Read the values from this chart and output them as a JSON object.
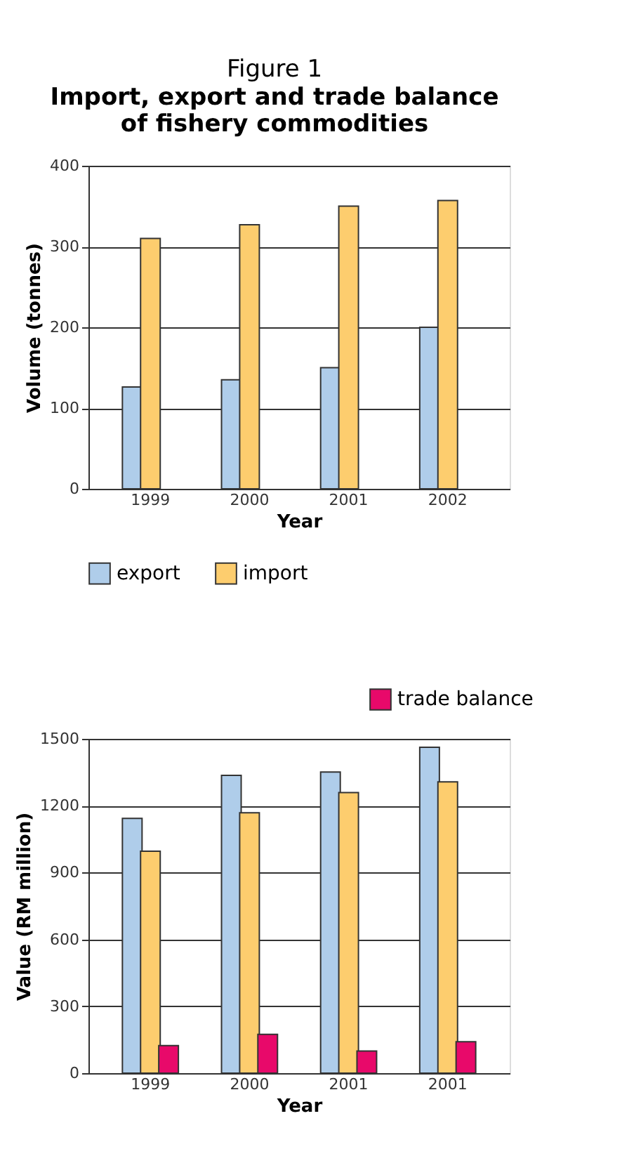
{
  "chart_data": [
    {
      "type": "bar",
      "title": "Figure 1",
      "subtitle": "Import, export and trade balance of fishery commodities",
      "xlabel": "Year",
      "ylabel": "Volume (tonnes)",
      "categories": [
        "1999",
        "2000",
        "2001",
        "2002"
      ],
      "series": [
        {
          "name": "export",
          "color": "#afcdea",
          "values": [
            126,
            135,
            150,
            200
          ]
        },
        {
          "name": "import",
          "color": "#fdcd6e",
          "values": [
            310,
            327,
            350,
            357
          ]
        }
      ],
      "ylim": [
        0,
        400
      ],
      "yticks": [
        0,
        100,
        200,
        300,
        400
      ],
      "grid": "y",
      "legend": "bottom"
    },
    {
      "type": "bar",
      "xlabel": "Year",
      "ylabel": "Value (RM million)",
      "categories": [
        "1999",
        "2000",
        "2001",
        "2001"
      ],
      "series": [
        {
          "color": "#afcdea",
          "values": [
            1143,
            1336,
            1351,
            1462
          ]
        },
        {
          "color": "#fdcd6e",
          "values": [
            996,
            1168,
            1259,
            1307
          ]
        },
        {
          "name": "trade balance",
          "color": "#e8096a",
          "values": [
            124,
            174,
            99,
            141
          ]
        }
      ],
      "ylim": [
        0,
        1500
      ],
      "yticks": [
        0,
        300,
        600,
        900,
        {
          "value": 1200,
          "label": "1200"
        },
        {
          "value": 1500,
          "label": "1500"
        }
      ],
      "grid": "y",
      "legend": "top"
    }
  ]
}
